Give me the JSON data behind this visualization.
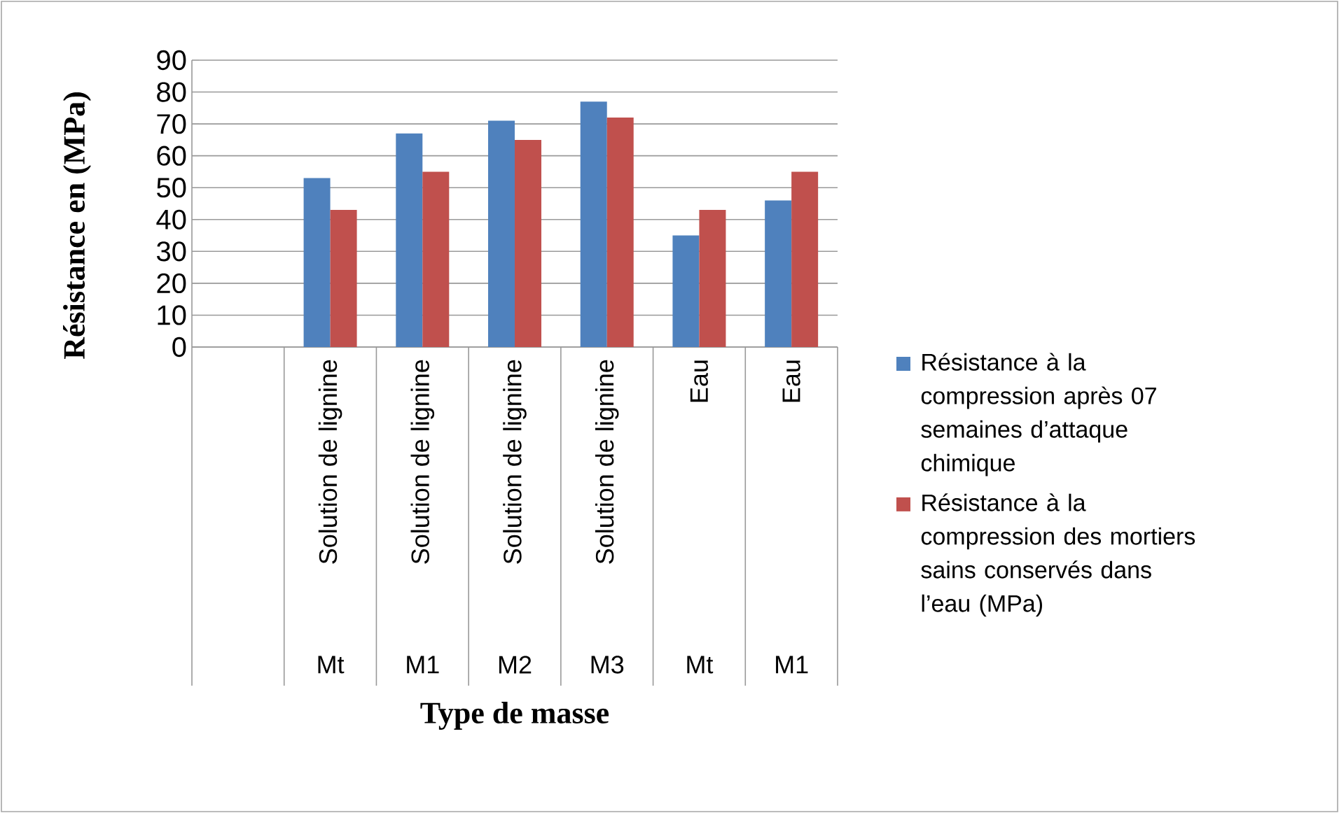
{
  "chart_data": {
    "type": "bar",
    "xlabel": "Type de masse",
    "ylabel": "Résistance en (MPa)",
    "categories": [
      null,
      "Solution de lignine",
      "Solution de lignine",
      "Solution de lignine",
      "Solution de lignine",
      "Eau",
      "Eau"
    ],
    "annotations": [
      "Mt",
      "M1",
      "M2",
      "M3",
      "Mt",
      "M1"
    ],
    "series": [
      {
        "name": "Résistance à la compression après 07 semaines d’attaque chimique",
        "color": "#4f81bd",
        "values": [
          null,
          53,
          67,
          71,
          77,
          35,
          46
        ]
      },
      {
        "name": "Résistance à la compression des mortiers sains conservés dans l’eau (MPa)",
        "color": "#c0504d",
        "values": [
          null,
          43,
          55,
          65,
          72,
          43,
          55
        ]
      }
    ],
    "ylim": [
      0,
      90
    ],
    "yticks": [
      0,
      10,
      20,
      30,
      40,
      50,
      60,
      70,
      80,
      90
    ],
    "grid": "y",
    "legend": "right"
  }
}
